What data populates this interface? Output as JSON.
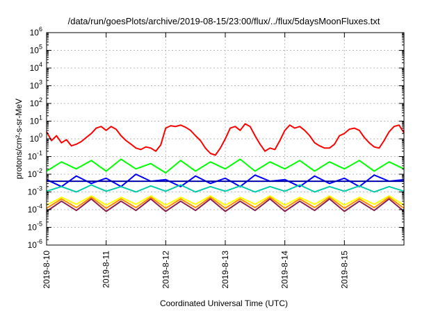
{
  "chart_data": {
    "type": "line",
    "title": "/data/run/goesPlots/archive/2019-08-15/23:00/flux/../flux/5daysMoonFluxes.txt",
    "xlabel": "Coordinated Universal Time (UTC)",
    "ylabel": "protons/cm²-s-sr-MeV",
    "xlim": [
      "2019-08-10 00:00",
      "2019-08-16 00:00"
    ],
    "ylim": [
      1e-06,
      1000000.0
    ],
    "y_scale": "log",
    "grid": true,
    "x_tick_labels": [
      "2019-8-10",
      "2019-8-11",
      "2019-8-12",
      "2019-8-13",
      "2019-8-14",
      "2019-8-15"
    ],
    "y_tick_exponents": [
      -6,
      -5,
      -4,
      -3,
      -2,
      -1,
      0,
      1,
      2,
      3,
      4,
      5,
      6
    ],
    "series": [
      {
        "color": "#ff0000",
        "x": [
          "2019-08-10 00:00",
          "2019-08-10 02:00",
          "2019-08-10 04:00",
          "2019-08-10 06:00",
          "2019-08-10 08:00",
          "2019-08-10 10:00",
          "2019-08-10 12:00",
          "2019-08-10 14:00",
          "2019-08-10 16:00",
          "2019-08-10 18:00",
          "2019-08-10 20:00",
          "2019-08-10 22:00",
          "2019-08-11 00:00",
          "2019-08-11 02:00",
          "2019-08-11 04:00",
          "2019-08-11 06:00",
          "2019-08-11 08:00",
          "2019-08-11 10:00",
          "2019-08-11 12:00",
          "2019-08-11 14:00",
          "2019-08-11 16:00",
          "2019-08-11 18:00",
          "2019-08-11 20:00",
          "2019-08-11 22:00",
          "2019-08-12 00:00",
          "2019-08-12 02:00",
          "2019-08-12 04:00",
          "2019-08-12 06:00",
          "2019-08-12 08:00",
          "2019-08-12 10:00",
          "2019-08-12 12:00",
          "2019-08-12 14:00",
          "2019-08-12 16:00",
          "2019-08-12 18:00",
          "2019-08-12 20:00",
          "2019-08-12 22:00",
          "2019-08-13 00:00",
          "2019-08-13 02:00",
          "2019-08-13 04:00",
          "2019-08-13 06:00",
          "2019-08-13 08:00",
          "2019-08-13 10:00",
          "2019-08-13 12:00",
          "2019-08-13 14:00",
          "2019-08-13 16:00",
          "2019-08-13 18:00",
          "2019-08-13 20:00",
          "2019-08-13 22:00",
          "2019-08-14 00:00",
          "2019-08-14 02:00",
          "2019-08-14 04:00",
          "2019-08-14 06:00",
          "2019-08-14 08:00",
          "2019-08-14 10:00",
          "2019-08-14 12:00",
          "2019-08-14 14:00",
          "2019-08-14 16:00",
          "2019-08-14 18:00",
          "2019-08-14 20:00",
          "2019-08-14 22:00",
          "2019-08-15 00:00",
          "2019-08-15 02:00",
          "2019-08-15 04:00",
          "2019-08-15 06:00",
          "2019-08-15 08:00",
          "2019-08-15 10:00",
          "2019-08-15 12:00",
          "2019-08-15 14:00",
          "2019-08-15 16:00",
          "2019-08-15 18:00",
          "2019-08-15 20:00",
          "2019-08-15 22:00",
          "2019-08-16 00:00"
        ],
        "values": [
          2.5,
          0.8,
          1.5,
          0.6,
          0.9,
          0.4,
          0.5,
          0.7,
          1.2,
          2,
          4,
          5,
          3,
          5,
          3.5,
          1.5,
          0.8,
          0.5,
          0.3,
          0.25,
          0.35,
          0.3,
          0.2,
          0.45,
          4,
          5.5,
          5,
          6,
          4.5,
          3,
          1.5,
          0.8,
          0.3,
          0.15,
          0.12,
          0.3,
          1,
          4,
          5,
          3,
          7,
          5,
          1.5,
          0.5,
          0.2,
          0.3,
          0.25,
          0.8,
          3,
          6,
          4,
          5,
          3,
          1.5,
          0.6,
          0.4,
          0.3,
          0.3,
          0.5,
          1.5,
          2,
          3.5,
          4,
          3,
          1.2,
          0.6,
          0.35,
          0.3,
          0.8,
          2.5,
          5,
          6,
          2.2
        ]
      },
      {
        "color": "#00ff00",
        "x": [
          "2019-08-10 00:00",
          "2019-08-10 06:00",
          "2019-08-10 12:00",
          "2019-08-10 18:00",
          "2019-08-11 00:00",
          "2019-08-11 06:00",
          "2019-08-11 12:00",
          "2019-08-11 18:00",
          "2019-08-12 00:00",
          "2019-08-12 06:00",
          "2019-08-12 12:00",
          "2019-08-12 18:00",
          "2019-08-13 00:00",
          "2019-08-13 06:00",
          "2019-08-13 12:00",
          "2019-08-13 18:00",
          "2019-08-14 00:00",
          "2019-08-14 06:00",
          "2019-08-14 12:00",
          "2019-08-14 18:00",
          "2019-08-15 00:00",
          "2019-08-15 06:00",
          "2019-08-15 12:00",
          "2019-08-15 18:00",
          "2019-08-16 00:00"
        ],
        "values": [
          0.015,
          0.05,
          0.02,
          0.06,
          0.015,
          0.07,
          0.02,
          0.04,
          0.012,
          0.06,
          0.015,
          0.05,
          0.02,
          0.07,
          0.015,
          0.05,
          0.02,
          0.06,
          0.015,
          0.05,
          0.02,
          0.06,
          0.015,
          0.05,
          0.02
        ]
      },
      {
        "color": "#0000ff",
        "x": [
          "2019-08-10 00:00",
          "2019-08-10 06:00",
          "2019-08-10 12:00",
          "2019-08-10 18:00",
          "2019-08-11 00:00",
          "2019-08-11 06:00",
          "2019-08-11 12:00",
          "2019-08-11 18:00",
          "2019-08-12 00:00",
          "2019-08-12 06:00",
          "2019-08-12 12:00",
          "2019-08-12 18:00",
          "2019-08-13 00:00",
          "2019-08-13 06:00",
          "2019-08-13 12:00",
          "2019-08-13 18:00",
          "2019-08-14 00:00",
          "2019-08-14 06:00",
          "2019-08-14 12:00",
          "2019-08-14 18:00",
          "2019-08-15 00:00",
          "2019-08-15 06:00",
          "2019-08-15 12:00",
          "2019-08-15 18:00",
          "2019-08-16 00:00"
        ],
        "values": [
          0.005,
          0.002,
          0.008,
          0.003,
          0.006,
          0.002,
          0.01,
          0.004,
          0.005,
          0.002,
          0.008,
          0.003,
          0.006,
          0.002,
          0.009,
          0.004,
          0.005,
          0.002,
          0.008,
          0.003,
          0.006,
          0.002,
          0.009,
          0.004,
          0.005
        ]
      },
      {
        "color": "#0000aa",
        "x": [
          "2019-08-10 00:00",
          "2019-08-16 00:00"
        ],
        "values": [
          0.004,
          0.004
        ]
      },
      {
        "color": "#00ccaa",
        "x": [
          "2019-08-10 00:00",
          "2019-08-10 06:00",
          "2019-08-10 12:00",
          "2019-08-10 18:00",
          "2019-08-11 00:00",
          "2019-08-11 06:00",
          "2019-08-11 12:00",
          "2019-08-11 18:00",
          "2019-08-12 00:00",
          "2019-08-12 06:00",
          "2019-08-12 12:00",
          "2019-08-12 18:00",
          "2019-08-13 00:00",
          "2019-08-13 06:00",
          "2019-08-13 12:00",
          "2019-08-13 18:00",
          "2019-08-14 00:00",
          "2019-08-14 06:00",
          "2019-08-14 12:00",
          "2019-08-14 18:00",
          "2019-08-15 00:00",
          "2019-08-15 06:00",
          "2019-08-15 12:00",
          "2019-08-15 18:00",
          "2019-08-16 00:00"
        ],
        "values": [
          0.0011,
          0.002,
          0.001,
          0.0025,
          0.0011,
          0.002,
          0.001,
          0.0022,
          0.0011,
          0.0025,
          0.001,
          0.002,
          0.0011,
          0.0022,
          0.001,
          0.002,
          0.0011,
          0.0025,
          0.001,
          0.002,
          0.0011,
          0.0022,
          0.001,
          0.002,
          0.0011
        ]
      },
      {
        "color": "#ffff00",
        "x": [
          "2019-08-10 00:00",
          "2019-08-10 06:00",
          "2019-08-10 12:00",
          "2019-08-10 18:00",
          "2019-08-11 00:00",
          "2019-08-11 06:00",
          "2019-08-11 12:00",
          "2019-08-11 18:00",
          "2019-08-12 00:00",
          "2019-08-12 06:00",
          "2019-08-12 12:00",
          "2019-08-12 18:00",
          "2019-08-13 00:00",
          "2019-08-13 06:00",
          "2019-08-13 12:00",
          "2019-08-13 18:00",
          "2019-08-14 00:00",
          "2019-08-14 06:00",
          "2019-08-14 12:00",
          "2019-08-14 18:00",
          "2019-08-15 00:00",
          "2019-08-15 06:00",
          "2019-08-15 12:00",
          "2019-08-15 18:00",
          "2019-08-16 00:00"
        ],
        "values": [
          0.00018,
          0.0005,
          0.0002,
          0.0006,
          0.00018,
          0.0005,
          0.0002,
          0.0006,
          0.00018,
          0.0005,
          0.0002,
          0.0006,
          0.00018,
          0.0005,
          0.0002,
          0.0006,
          0.00018,
          0.0005,
          0.0002,
          0.0006,
          0.00018,
          0.0005,
          0.0002,
          0.0006,
          0.00018
        ]
      },
      {
        "color": "#ff8c00",
        "x": [
          "2019-08-10 00:00",
          "2019-08-10 06:00",
          "2019-08-10 12:00",
          "2019-08-10 18:00",
          "2019-08-11 00:00",
          "2019-08-11 06:00",
          "2019-08-11 12:00",
          "2019-08-11 18:00",
          "2019-08-12 00:00",
          "2019-08-12 06:00",
          "2019-08-12 12:00",
          "2019-08-12 18:00",
          "2019-08-13 00:00",
          "2019-08-13 06:00",
          "2019-08-13 12:00",
          "2019-08-13 18:00",
          "2019-08-14 00:00",
          "2019-08-14 06:00",
          "2019-08-14 12:00",
          "2019-08-14 18:00",
          "2019-08-15 00:00",
          "2019-08-15 06:00",
          "2019-08-15 12:00",
          "2019-08-15 18:00",
          "2019-08-16 00:00"
        ],
        "values": [
          0.00012,
          0.0004,
          0.00013,
          0.0005,
          0.00012,
          0.0004,
          0.00013,
          0.0005,
          0.00012,
          0.0004,
          0.00013,
          0.0005,
          0.00012,
          0.0004,
          0.00013,
          0.0005,
          0.00012,
          0.0004,
          0.00013,
          0.0005,
          0.00012,
          0.0004,
          0.00013,
          0.0005,
          0.00012
        ]
      },
      {
        "color": "#8b2252",
        "x": [
          "2019-08-10 00:00",
          "2019-08-10 06:00",
          "2019-08-10 12:00",
          "2019-08-10 18:00",
          "2019-08-11 00:00",
          "2019-08-11 06:00",
          "2019-08-11 12:00",
          "2019-08-11 18:00",
          "2019-08-12 00:00",
          "2019-08-12 06:00",
          "2019-08-12 12:00",
          "2019-08-12 18:00",
          "2019-08-13 00:00",
          "2019-08-13 06:00",
          "2019-08-13 12:00",
          "2019-08-13 18:00",
          "2019-08-14 00:00",
          "2019-08-14 06:00",
          "2019-08-14 12:00",
          "2019-08-14 18:00",
          "2019-08-15 00:00",
          "2019-08-15 06:00",
          "2019-08-15 12:00",
          "2019-08-15 18:00",
          "2019-08-16 00:00"
        ],
        "values": [
          8e-05,
          0.0003,
          9e-05,
          0.0004,
          8e-05,
          0.0003,
          9e-05,
          0.0004,
          8e-05,
          0.0003,
          9e-05,
          0.0004,
          8e-05,
          0.0003,
          9e-05,
          0.0004,
          8e-05,
          0.0003,
          9e-05,
          0.0004,
          8e-05,
          0.0003,
          9e-05,
          0.0004,
          8e-05
        ]
      }
    ]
  }
}
